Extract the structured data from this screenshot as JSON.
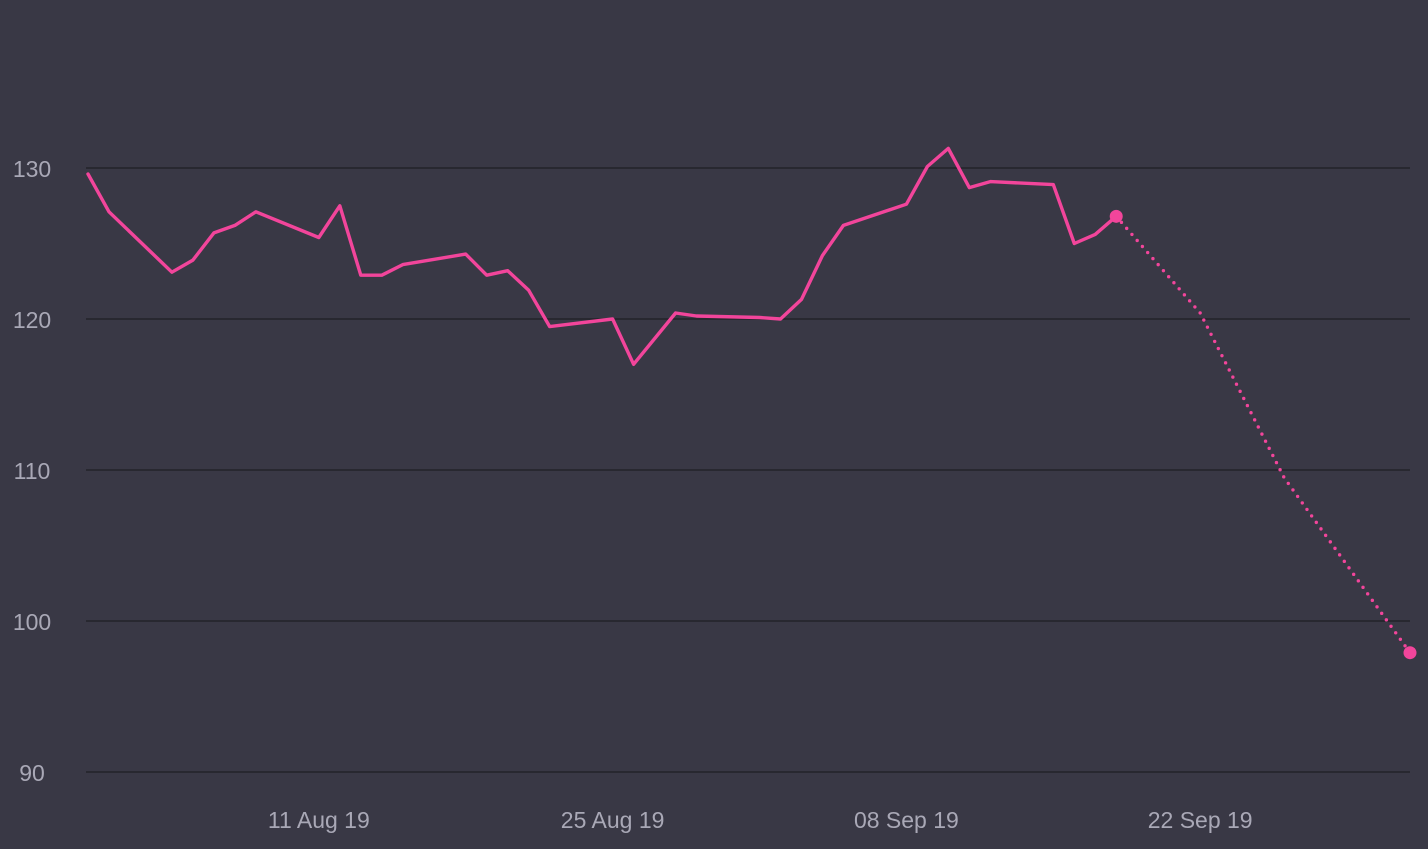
{
  "chart_data": {
    "type": "line",
    "grid": true,
    "legend": "none",
    "colors": {
      "background": "#393845",
      "series": "#f2459b",
      "grid": "#232229",
      "tick_text": "#a9a8b6"
    },
    "xlim": [
      "2019-07-31",
      "2019-10-02"
    ],
    "ylim": [
      90,
      133
    ],
    "x_ticks": [
      {
        "date": "2019-08-11",
        "label": "11 Aug 19"
      },
      {
        "date": "2019-08-25",
        "label": "25 Aug 19"
      },
      {
        "date": "2019-09-08",
        "label": "08 Sep 19"
      },
      {
        "date": "2019-09-22",
        "label": "22 Sep 19"
      }
    ],
    "y_ticks": [
      90,
      100,
      110,
      120,
      130
    ],
    "series": [
      {
        "style": "solid",
        "points": [
          [
            "2019-07-31",
            129.6
          ],
          [
            "2019-08-01",
            127.1
          ],
          [
            "2019-08-04",
            123.1
          ],
          [
            "2019-08-05",
            123.9
          ],
          [
            "2019-08-06",
            125.7
          ],
          [
            "2019-08-07",
            126.2
          ],
          [
            "2019-08-08",
            127.1
          ],
          [
            "2019-08-11",
            125.4
          ],
          [
            "2019-08-12",
            127.5
          ],
          [
            "2019-08-13",
            122.9
          ],
          [
            "2019-08-14",
            122.9
          ],
          [
            "2019-08-15",
            123.6
          ],
          [
            "2019-08-18",
            124.3
          ],
          [
            "2019-08-19",
            122.9
          ],
          [
            "2019-08-20",
            123.2
          ],
          [
            "2019-08-21",
            121.9
          ],
          [
            "2019-08-22",
            119.5
          ],
          [
            "2019-08-25",
            120.0
          ],
          [
            "2019-08-26",
            117.0
          ],
          [
            "2019-08-28",
            120.4
          ],
          [
            "2019-08-29",
            120.2
          ],
          [
            "2019-09-01",
            120.1
          ],
          [
            "2019-09-02",
            120.0
          ],
          [
            "2019-09-03",
            121.3
          ],
          [
            "2019-09-04",
            124.2
          ],
          [
            "2019-09-05",
            126.2
          ],
          [
            "2019-09-08",
            127.6
          ],
          [
            "2019-09-09",
            130.1
          ],
          [
            "2019-09-10",
            131.3
          ],
          [
            "2019-09-11",
            128.7
          ],
          [
            "2019-09-12",
            129.1
          ],
          [
            "2019-09-15",
            128.9
          ],
          [
            "2019-09-16",
            125.0
          ],
          [
            "2019-09-17",
            125.6
          ],
          [
            "2019-09-18",
            126.8
          ]
        ]
      },
      {
        "style": "dotted",
        "points": [
          [
            "2019-09-18",
            126.8
          ],
          [
            "2019-09-22",
            120.4
          ],
          [
            "2019-09-26",
            109.5
          ],
          [
            "2019-10-02",
            97.9
          ]
        ]
      }
    ],
    "end_markers": [
      [
        "2019-09-18",
        126.8
      ],
      [
        "2019-10-02",
        97.9
      ]
    ]
  }
}
